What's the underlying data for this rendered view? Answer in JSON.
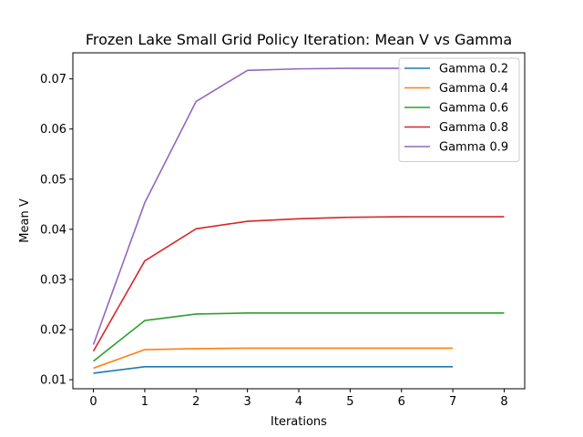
{
  "chart_data": {
    "type": "line",
    "title": "Frozen Lake Small Grid Policy Iteration: Mean V vs Gamma",
    "xlabel": "Iterations",
    "ylabel": "Mean V",
    "xlim": [
      -0.4,
      8.4
    ],
    "ylim": [
      0.0082,
      0.0752
    ],
    "xticks": [
      0,
      1,
      2,
      3,
      4,
      5,
      6,
      7,
      8
    ],
    "yticks": [
      0.01,
      0.02,
      0.03,
      0.04,
      0.05,
      0.06,
      0.07
    ],
    "ytick_labels": [
      "0.01",
      "0.02",
      "0.03",
      "0.04",
      "0.05",
      "0.06",
      "0.07"
    ],
    "grid": false,
    "legend_position": "top-right",
    "series": [
      {
        "name": "Gamma 0.2",
        "color": "#1f77b4",
        "x": [
          0,
          1,
          2,
          3,
          4,
          5,
          6,
          7
        ],
        "values": [
          0.0113,
          0.0126,
          0.0126,
          0.0126,
          0.0126,
          0.0126,
          0.0126,
          0.0126
        ]
      },
      {
        "name": "Gamma 0.4",
        "color": "#ff7f0e",
        "x": [
          0,
          1,
          2,
          3,
          4,
          5,
          6,
          7
        ],
        "values": [
          0.0123,
          0.016,
          0.0162,
          0.0163,
          0.0163,
          0.0163,
          0.0163,
          0.0163
        ]
      },
      {
        "name": "Gamma 0.6",
        "color": "#2ca02c",
        "x": [
          0,
          1,
          2,
          3,
          4,
          5,
          6,
          7,
          8
        ],
        "values": [
          0.0137,
          0.0218,
          0.0231,
          0.0233,
          0.0233,
          0.0233,
          0.0233,
          0.0233,
          0.0233
        ]
      },
      {
        "name": "Gamma 0.8",
        "color": "#d62728",
        "x": [
          0,
          1,
          2,
          3,
          4,
          5,
          6,
          7,
          8
        ],
        "values": [
          0.0157,
          0.0337,
          0.0401,
          0.0416,
          0.0421,
          0.0424,
          0.0425,
          0.0425,
          0.0425
        ]
      },
      {
        "name": "Gamma 0.9",
        "color": "#9467bd",
        "x": [
          0,
          1,
          2,
          3,
          4,
          5,
          6
        ],
        "values": [
          0.017,
          0.0453,
          0.0655,
          0.0717,
          0.072,
          0.0721,
          0.0721
        ]
      }
    ]
  }
}
